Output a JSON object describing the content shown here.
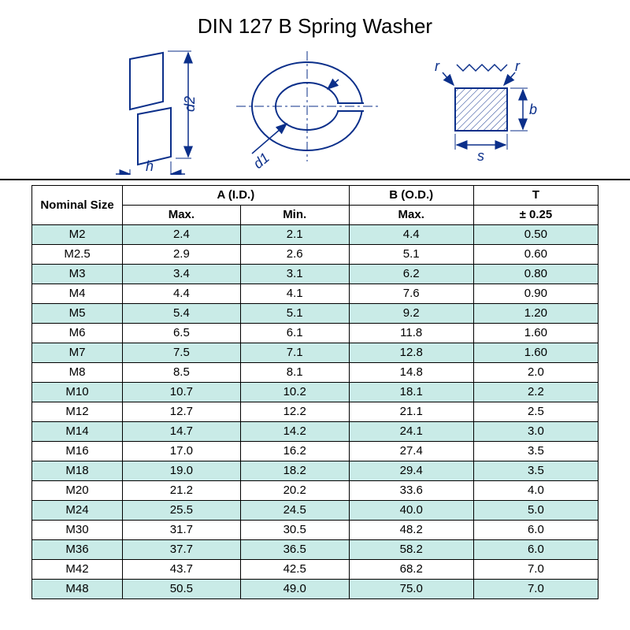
{
  "title": "DIN 127 B  Spring Washer",
  "diagram": {
    "labels": {
      "d2": "d2",
      "h": "h",
      "d1": "d1",
      "s": "s",
      "b": "b",
      "r1": "r",
      "r2": "r"
    },
    "stroke": "#0b2f8a",
    "hatch": "#0b2f8a",
    "label_color": "#0b2f8a",
    "label_fontsize": 18
  },
  "table": {
    "head": {
      "nominal": "Nominal Size",
      "a": "A (I.D.)",
      "a_max": "Max.",
      "a_min": "Min.",
      "b": "B (O.D.)",
      "b_max": "Max.",
      "t": "T",
      "t_tol": "± 0.25"
    },
    "row_stripe_color": "#c9ebe7",
    "border_color": "#000000",
    "font_size": 15,
    "rows": [
      {
        "size": "M2",
        "a_max": "2.4",
        "a_min": "2.1",
        "b_max": "4.4",
        "t": "0.50"
      },
      {
        "size": "M2.5",
        "a_max": "2.9",
        "a_min": "2.6",
        "b_max": "5.1",
        "t": "0.60"
      },
      {
        "size": "M3",
        "a_max": "3.4",
        "a_min": "3.1",
        "b_max": "6.2",
        "t": "0.80"
      },
      {
        "size": "M4",
        "a_max": "4.4",
        "a_min": "4.1",
        "b_max": "7.6",
        "t": "0.90"
      },
      {
        "size": "M5",
        "a_max": "5.4",
        "a_min": "5.1",
        "b_max": "9.2",
        "t": "1.20"
      },
      {
        "size": "M6",
        "a_max": "6.5",
        "a_min": "6.1",
        "b_max": "11.8",
        "t": "1.60"
      },
      {
        "size": "M7",
        "a_max": "7.5",
        "a_min": "7.1",
        "b_max": "12.8",
        "t": "1.60"
      },
      {
        "size": "M8",
        "a_max": "8.5",
        "a_min": "8.1",
        "b_max": "14.8",
        "t": "2.0"
      },
      {
        "size": "M10",
        "a_max": "10.7",
        "a_min": "10.2",
        "b_max": "18.1",
        "t": "2.2"
      },
      {
        "size": "M12",
        "a_max": "12.7",
        "a_min": "12.2",
        "b_max": "21.1",
        "t": "2.5"
      },
      {
        "size": "M14",
        "a_max": "14.7",
        "a_min": "14.2",
        "b_max": "24.1",
        "t": "3.0"
      },
      {
        "size": "M16",
        "a_max": "17.0",
        "a_min": "16.2",
        "b_max": "27.4",
        "t": "3.5"
      },
      {
        "size": "M18",
        "a_max": "19.0",
        "a_min": "18.2",
        "b_max": "29.4",
        "t": "3.5"
      },
      {
        "size": "M20",
        "a_max": "21.2",
        "a_min": "20.2",
        "b_max": "33.6",
        "t": "4.0"
      },
      {
        "size": "M24",
        "a_max": "25.5",
        "a_min": "24.5",
        "b_max": "40.0",
        "t": "5.0"
      },
      {
        "size": "M30",
        "a_max": "31.7",
        "a_min": "30.5",
        "b_max": "48.2",
        "t": "6.0"
      },
      {
        "size": "M36",
        "a_max": "37.7",
        "a_min": "36.5",
        "b_max": "58.2",
        "t": "6.0"
      },
      {
        "size": "M42",
        "a_max": "43.7",
        "a_min": "42.5",
        "b_max": "68.2",
        "t": "7.0"
      },
      {
        "size": "M48",
        "a_max": "50.5",
        "a_min": "49.0",
        "b_max": "75.0",
        "t": "7.0"
      }
    ]
  }
}
